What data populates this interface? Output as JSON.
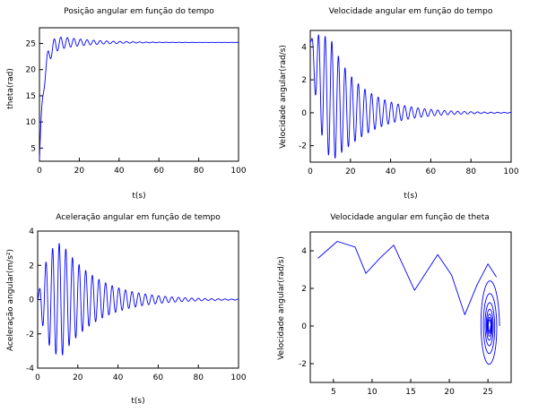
{
  "figure": {
    "line_color": "#0000ff",
    "axis_color": "#000000",
    "background": "#ffffff"
  },
  "chart_data": [
    {
      "type": "line",
      "title": "Posição angular em função do tempo",
      "xlabel": "t(s)",
      "ylabel": "theta(rad)",
      "xlim": [
        0,
        100
      ],
      "ylim": [
        2.5,
        28
      ],
      "xticks": [
        0,
        20,
        40,
        60,
        80,
        100
      ],
      "yticks": [
        5,
        10,
        15,
        20,
        25
      ],
      "grid": false,
      "series": [
        {
          "kind": "damped_oscillation",
          "t_range": [
            0,
            100
          ],
          "start_value": 2.8,
          "settle_value": 25.2,
          "rise_time": 6.5,
          "oscillation_period": 3.3,
          "initial_amplitude": 2.3,
          "decay_time": 16
        }
      ]
    },
    {
      "type": "line",
      "title": "Velocidade angular em função do tempo",
      "xlabel": "t(s)",
      "ylabel": "Velocidade angular(rad/s)",
      "xlim": [
        0,
        100
      ],
      "ylim": [
        -3,
        5
      ],
      "xticks": [
        0,
        20,
        40,
        60,
        80,
        100
      ],
      "yticks": [
        -2,
        0,
        2,
        4
      ],
      "grid": false,
      "series": [
        {
          "kind": "damped_oscillation",
          "t_range": [
            0,
            100
          ],
          "center_value": 0,
          "initial_offset": 4.4,
          "offset_decay_time": 6,
          "oscillation_period": 3.3,
          "peak_amplitude": 3.6,
          "peak_time": 11,
          "decay_time": 17
        }
      ]
    },
    {
      "type": "line",
      "title": "Aceleração angular em função de tempo",
      "xlabel": "t(s)",
      "ylabel": "Aceleração angular(m/s²)",
      "xlim": [
        0,
        100
      ],
      "ylim": [
        -4,
        4
      ],
      "xticks": [
        0,
        20,
        40,
        60,
        80,
        100
      ],
      "yticks": [
        -4,
        -2,
        0,
        2,
        4
      ],
      "grid": false,
      "series": [
        {
          "kind": "damped_oscillation",
          "t_range": [
            0,
            100
          ],
          "center_value": 0,
          "oscillation_period": 3.3,
          "peak_amplitude": 3.3,
          "peak_time": 12,
          "decay_time": 18
        }
      ]
    },
    {
      "type": "line",
      "title": "Velocidade angular em função de theta",
      "xlabel": "",
      "ylabel": "Velocidade angular(rad/s)",
      "xlim": [
        2,
        28
      ],
      "ylim": [
        -3,
        5
      ],
      "xticks": [
        5,
        10,
        15,
        20,
        25
      ],
      "yticks": [
        -2,
        0,
        2,
        4
      ],
      "grid": false,
      "series": [
        {
          "kind": "polyline",
          "x": [
            3.0,
            5.5,
            7.8,
            9.2,
            11.0,
            12.8,
            15.5,
            18.5,
            20.3,
            22.0,
            23.6,
            25.0,
            26.1
          ],
          "y": [
            3.6,
            4.5,
            4.2,
            2.8,
            3.6,
            4.3,
            1.9,
            3.8,
            2.7,
            0.6,
            2.2,
            3.3,
            2.6
          ]
        },
        {
          "kind": "spiral",
          "center": [
            25.2,
            0
          ],
          "start_rx": 1.3,
          "start_ry": 2.6,
          "turns": 7,
          "shrink": 0.72
        }
      ]
    }
  ]
}
